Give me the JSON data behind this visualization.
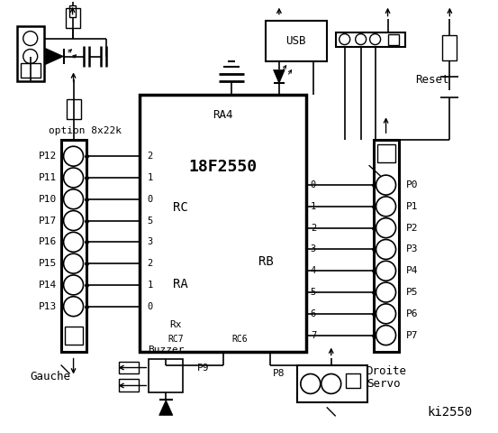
{
  "title": "ki2550",
  "bg_color": "#ffffff",
  "line_color": "#000000",
  "left_labels": [
    "P12",
    "P11",
    "P10",
    "P17",
    "P16",
    "P15",
    "P14",
    "P13"
  ],
  "right_labels": [
    "P0",
    "P1",
    "P2",
    "P3",
    "P4",
    "P5",
    "P6",
    "P7"
  ],
  "rc_pins": [
    "2",
    "1",
    "0",
    "5",
    "3",
    "2",
    "1",
    "0"
  ],
  "rb_pins": [
    "0",
    "1",
    "2",
    "3",
    "4",
    "5",
    "6",
    "7"
  ],
  "option_text": "option 8x22k",
  "reset_text": "Reset",
  "usb_text": "USB",
  "gauche_text": "Gauche",
  "droite_text": "Droite",
  "buzzer_text": "Buzzer",
  "servo_text": "Servo",
  "p9_text": "P9",
  "p8_text": "P8",
  "chip_label": "18F2550",
  "ra4_text": "RA4",
  "rc_text": "RC",
  "ra_text": "RA",
  "rb_text": "RB",
  "rx_text": "Rx",
  "rc7_text": "RC7",
  "rc6_text": "RC6"
}
